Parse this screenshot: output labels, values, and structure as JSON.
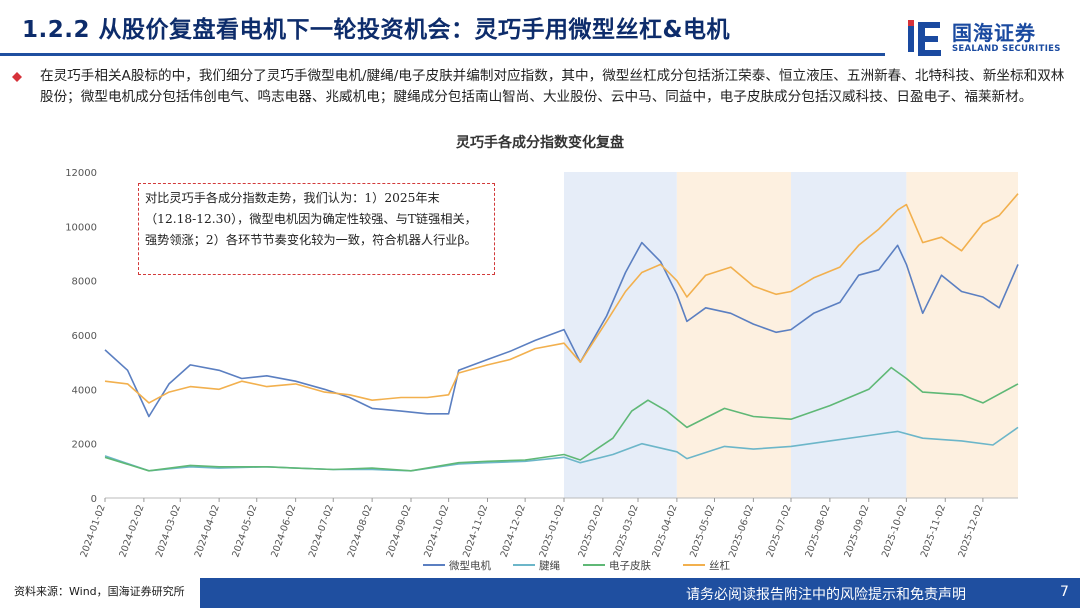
{
  "header": {
    "title": "1.2.2 从股价复盘看电机下一轮投资机会：灵巧手用微型丝杠&电机",
    "logo_cn": "国海证券",
    "logo_en": "SEALAND SECURITIES",
    "brand_color": "#1f4fa0"
  },
  "intro": "在灵巧手相关A股标的中，我们细分了灵巧手微型电机/腱绳/电子皮肤并编制对应指数，其中，微型丝杠成分包括浙江荣泰、恒立液压、五洲新春、北特科技、新坐标和双林股份；微型电机成分包括伟创电气、鸣志电器、兆威机电；腱绳成分包括南山智尚、大业股份、云中马、同益中，电子皮肤成分包括汉威科技、日盈电子、福莱新材。",
  "note": "对比灵巧手各成分指数走势，我们认为：1）2025年末（12.18-12.30），微型电机因为确定性较强、与T链强相关，强势领涨；2）各环节节奏变化较为一致，符合机器人行业β。",
  "footer": {
    "source": "资料来源：Wind，国海证券研究所",
    "disclaimer": "请务必阅读报告附注中的风险提示和免责声明",
    "page": "7"
  },
  "chart_data": {
    "type": "line",
    "title": "灵巧手各成分指数变化复盘",
    "ylim": [
      0,
      12000
    ],
    "yticks": [
      0,
      2000,
      4000,
      6000,
      8000,
      10000,
      12000
    ],
    "x_labels": [
      "2024-01-02",
      "2024-02-02",
      "2024-03-02",
      "2024-04-02",
      "2024-05-02",
      "2024-06-02",
      "2024-07-02",
      "2024-08-02",
      "2024-09-02",
      "2024-10-02",
      "2024-11-02",
      "2024-12-02",
      "2025-01-02",
      "2025-02-02",
      "2025-03-02",
      "2025-04-02",
      "2025-05-02",
      "2025-06-02",
      "2025-07-02",
      "2025-08-02",
      "2025-09-02",
      "2025-10-02",
      "2025-11-02",
      "2025-12-02"
    ],
    "x_range": [
      "2024-01-02",
      "2025-12-30"
    ],
    "legend_position": "bottom",
    "shaded_periods": [
      {
        "from": "2025-01-02",
        "to": "2025-04-02",
        "color": "#e6edf8"
      },
      {
        "from": "2025-04-02",
        "to": "2025-07-02",
        "color": "#fdf0e0"
      },
      {
        "from": "2025-07-02",
        "to": "2025-10-02",
        "color": "#e6edf8"
      },
      {
        "from": "2025-10-02",
        "to": "2025-12-30",
        "color": "#fdf0e0"
      }
    ],
    "series": [
      {
        "name": "微型电机",
        "color": "#5b7fc1",
        "points": [
          [
            "2024-01-02",
            5450
          ],
          [
            "2024-01-20",
            4700
          ],
          [
            "2024-02-06",
            3000
          ],
          [
            "2024-02-22",
            4200
          ],
          [
            "2024-03-10",
            4900
          ],
          [
            "2024-04-02",
            4700
          ],
          [
            "2024-04-20",
            4400
          ],
          [
            "2024-05-10",
            4500
          ],
          [
            "2024-06-02",
            4300
          ],
          [
            "2024-06-25",
            4000
          ],
          [
            "2024-07-15",
            3700
          ],
          [
            "2024-08-02",
            3300
          ],
          [
            "2024-08-25",
            3200
          ],
          [
            "2024-09-15",
            3100
          ],
          [
            "2024-10-02",
            3100
          ],
          [
            "2024-10-10",
            4700
          ],
          [
            "2024-11-02",
            5100
          ],
          [
            "2024-11-20",
            5400
          ],
          [
            "2024-12-10",
            5800
          ],
          [
            "2025-01-02",
            6200
          ],
          [
            "2025-01-15",
            5000
          ],
          [
            "2025-02-05",
            6700
          ],
          [
            "2025-02-20",
            8300
          ],
          [
            "2025-03-05",
            9400
          ],
          [
            "2025-03-20",
            8700
          ],
          [
            "2025-04-02",
            7500
          ],
          [
            "2025-04-10",
            6500
          ],
          [
            "2025-04-25",
            7000
          ],
          [
            "2025-05-15",
            6800
          ],
          [
            "2025-06-02",
            6400
          ],
          [
            "2025-06-20",
            6100
          ],
          [
            "2025-07-02",
            6200
          ],
          [
            "2025-07-20",
            6800
          ],
          [
            "2025-08-10",
            7200
          ],
          [
            "2025-08-25",
            8200
          ],
          [
            "2025-09-10",
            8400
          ],
          [
            "2025-09-25",
            9300
          ],
          [
            "2025-10-02",
            8600
          ],
          [
            "2025-10-15",
            6800
          ],
          [
            "2025-10-30",
            8200
          ],
          [
            "2025-11-15",
            7600
          ],
          [
            "2025-12-02",
            7400
          ],
          [
            "2025-12-15",
            7000
          ],
          [
            "2025-12-30",
            8600
          ]
        ]
      },
      {
        "name": "腱绳",
        "color": "#6cb6c9",
        "points": [
          [
            "2024-01-02",
            1550
          ],
          [
            "2024-02-06",
            1000
          ],
          [
            "2024-03-10",
            1150
          ],
          [
            "2024-04-02",
            1100
          ],
          [
            "2024-05-10",
            1150
          ],
          [
            "2024-06-02",
            1100
          ],
          [
            "2024-07-02",
            1050
          ],
          [
            "2024-08-02",
            1050
          ],
          [
            "2024-09-02",
            1000
          ],
          [
            "2024-10-10",
            1250
          ],
          [
            "2024-11-02",
            1300
          ],
          [
            "2024-12-02",
            1350
          ],
          [
            "2025-01-02",
            1500
          ],
          [
            "2025-01-15",
            1300
          ],
          [
            "2025-02-10",
            1600
          ],
          [
            "2025-03-05",
            2000
          ],
          [
            "2025-04-02",
            1700
          ],
          [
            "2025-04-10",
            1450
          ],
          [
            "2025-05-10",
            1900
          ],
          [
            "2025-06-02",
            1800
          ],
          [
            "2025-07-02",
            1900
          ],
          [
            "2025-08-02",
            2100
          ],
          [
            "2025-09-02",
            2300
          ],
          [
            "2025-09-25",
            2450
          ],
          [
            "2025-10-15",
            2200
          ],
          [
            "2025-11-15",
            2100
          ],
          [
            "2025-12-10",
            1950
          ],
          [
            "2025-12-30",
            2600
          ]
        ]
      },
      {
        "name": "电子皮肤",
        "color": "#5fb876",
        "points": [
          [
            "2024-01-02",
            1500
          ],
          [
            "2024-02-06",
            1000
          ],
          [
            "2024-03-10",
            1200
          ],
          [
            "2024-04-02",
            1150
          ],
          [
            "2024-05-10",
            1150
          ],
          [
            "2024-06-02",
            1100
          ],
          [
            "2024-07-02",
            1050
          ],
          [
            "2024-08-02",
            1100
          ],
          [
            "2024-09-02",
            1000
          ],
          [
            "2024-10-10",
            1300
          ],
          [
            "2024-11-02",
            1350
          ],
          [
            "2024-12-02",
            1400
          ],
          [
            "2025-01-02",
            1600
          ],
          [
            "2025-01-15",
            1400
          ],
          [
            "2025-02-10",
            2200
          ],
          [
            "2025-02-25",
            3200
          ],
          [
            "2025-03-10",
            3600
          ],
          [
            "2025-03-25",
            3200
          ],
          [
            "2025-04-10",
            2600
          ],
          [
            "2025-05-10",
            3300
          ],
          [
            "2025-06-02",
            3000
          ],
          [
            "2025-07-02",
            2900
          ],
          [
            "2025-08-02",
            3400
          ],
          [
            "2025-09-02",
            4000
          ],
          [
            "2025-09-20",
            4800
          ],
          [
            "2025-10-02",
            4400
          ],
          [
            "2025-10-15",
            3900
          ],
          [
            "2025-11-15",
            3800
          ],
          [
            "2025-12-02",
            3500
          ],
          [
            "2025-12-30",
            4200
          ]
        ]
      },
      {
        "name": "丝杠",
        "color": "#f2b04e",
        "points": [
          [
            "2024-01-02",
            4300
          ],
          [
            "2024-01-20",
            4200
          ],
          [
            "2024-02-06",
            3500
          ],
          [
            "2024-02-22",
            3900
          ],
          [
            "2024-03-10",
            4100
          ],
          [
            "2024-04-02",
            4000
          ],
          [
            "2024-04-20",
            4300
          ],
          [
            "2024-05-10",
            4100
          ],
          [
            "2024-06-02",
            4200
          ],
          [
            "2024-06-25",
            3900
          ],
          [
            "2024-07-15",
            3800
          ],
          [
            "2024-08-02",
            3600
          ],
          [
            "2024-08-25",
            3700
          ],
          [
            "2024-09-15",
            3700
          ],
          [
            "2024-10-02",
            3800
          ],
          [
            "2024-10-10",
            4600
          ],
          [
            "2024-11-02",
            4900
          ],
          [
            "2024-11-20",
            5100
          ],
          [
            "2024-12-10",
            5500
          ],
          [
            "2025-01-02",
            5700
          ],
          [
            "2025-01-15",
            5000
          ],
          [
            "2025-02-05",
            6500
          ],
          [
            "2025-02-20",
            7600
          ],
          [
            "2025-03-05",
            8300
          ],
          [
            "2025-03-20",
            8600
          ],
          [
            "2025-04-02",
            8000
          ],
          [
            "2025-04-10",
            7400
          ],
          [
            "2025-04-25",
            8200
          ],
          [
            "2025-05-15",
            8500
          ],
          [
            "2025-06-02",
            7800
          ],
          [
            "2025-06-20",
            7500
          ],
          [
            "2025-07-02",
            7600
          ],
          [
            "2025-07-20",
            8100
          ],
          [
            "2025-08-10",
            8500
          ],
          [
            "2025-08-25",
            9300
          ],
          [
            "2025-09-10",
            9900
          ],
          [
            "2025-09-25",
            10600
          ],
          [
            "2025-10-02",
            10800
          ],
          [
            "2025-10-15",
            9400
          ],
          [
            "2025-10-30",
            9600
          ],
          [
            "2025-11-15",
            9100
          ],
          [
            "2025-12-02",
            10100
          ],
          [
            "2025-12-15",
            10400
          ],
          [
            "2025-12-30",
            11200
          ]
        ]
      }
    ]
  }
}
